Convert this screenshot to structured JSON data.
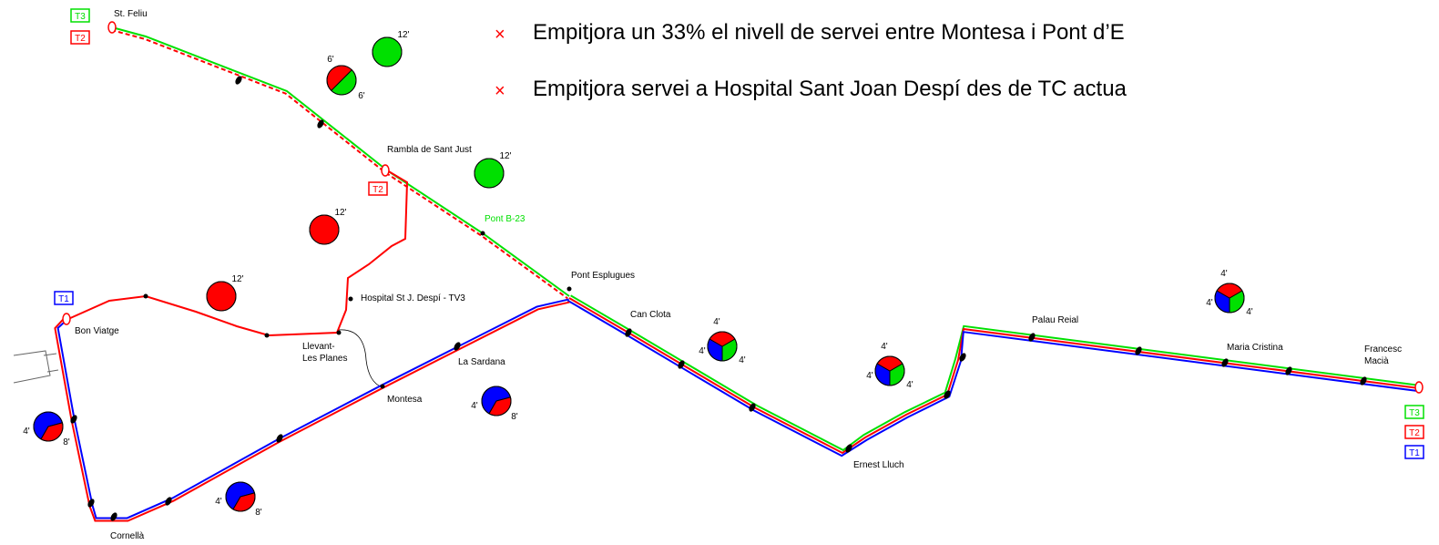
{
  "notes": [
    "Empitjora un 33% el nivell de servei entre Montesa i Pont d’E",
    "Empitjora servei a Hospital Sant Joan Despí des de TC actua"
  ],
  "stations": [
    {
      "lines": [
        "St. Feliu"
      ]
    },
    {
      "lines": [
        "Rambla de Sant Just"
      ]
    },
    {
      "lines": [
        "Pont B-23"
      ]
    },
    {
      "lines": [
        "Pont Esplugues"
      ]
    },
    {
      "lines": [
        "Can Clota"
      ]
    },
    {
      "lines": [
        "Palau Reial"
      ]
    },
    {
      "lines": [
        "Maria Cristina"
      ]
    },
    {
      "lines": [
        "Francesc",
        "Macià"
      ]
    },
    {
      "lines": [
        "Hospital St J. Despí - TV3"
      ]
    },
    {
      "lines": [
        "Llevant-",
        "Les Planes"
      ]
    },
    {
      "lines": [
        "Bon Viatge"
      ]
    },
    {
      "lines": [
        "Montesa"
      ]
    },
    {
      "lines": [
        "La Sardana"
      ]
    },
    {
      "lines": [
        "Cornellà"
      ]
    },
    {
      "lines": [
        "Ernest Lluch"
      ]
    }
  ],
  "line_colors": {
    "T1": "#0000ff",
    "T2": "#ff0000",
    "T3": "#00e000"
  },
  "line_labels": [
    "T3",
    "T2",
    "T2",
    "T1",
    "T3",
    "T2",
    "T1"
  ],
  "pies": [
    {
      "slices": [
        {
          "line": "T3",
          "label": "12'"
        }
      ]
    },
    {
      "slices": [
        {
          "line": "T3",
          "label": "6'"
        },
        {
          "line": "T2",
          "label": "6'"
        }
      ]
    },
    {
      "slices": [
        {
          "line": "T3",
          "label": "12'"
        }
      ]
    },
    {
      "slices": [
        {
          "line": "T2",
          "label": "12'"
        }
      ]
    },
    {
      "slices": [
        {
          "line": "T2",
          "label": "12'"
        }
      ]
    },
    {
      "slices": [
        {
          "line": "T1",
          "label": "4'"
        },
        {
          "line": "T3",
          "label": "4'"
        },
        {
          "line": "T2",
          "label": "4'"
        }
      ]
    },
    {
      "slices": [
        {
          "line": "T1",
          "label": "4'"
        },
        {
          "line": "T3",
          "label": "4'"
        },
        {
          "line": "T2",
          "label": "4'"
        }
      ]
    },
    {
      "slices": [
        {
          "line": "T1",
          "label": "4'"
        },
        {
          "line": "T3",
          "label": "4'"
        },
        {
          "line": "T2",
          "label": "4'"
        }
      ]
    },
    {
      "slices": [
        {
          "line": "T1",
          "label": "4'"
        },
        {
          "line": "T2",
          "label": "8'"
        }
      ]
    },
    {
      "slices": [
        {
          "line": "T1",
          "label": "4'"
        },
        {
          "line": "T2",
          "label": "8'"
        }
      ]
    },
    {
      "slices": [
        {
          "line": "T1",
          "label": "4'"
        },
        {
          "line": "T2",
          "label": "8'"
        }
      ]
    }
  ]
}
